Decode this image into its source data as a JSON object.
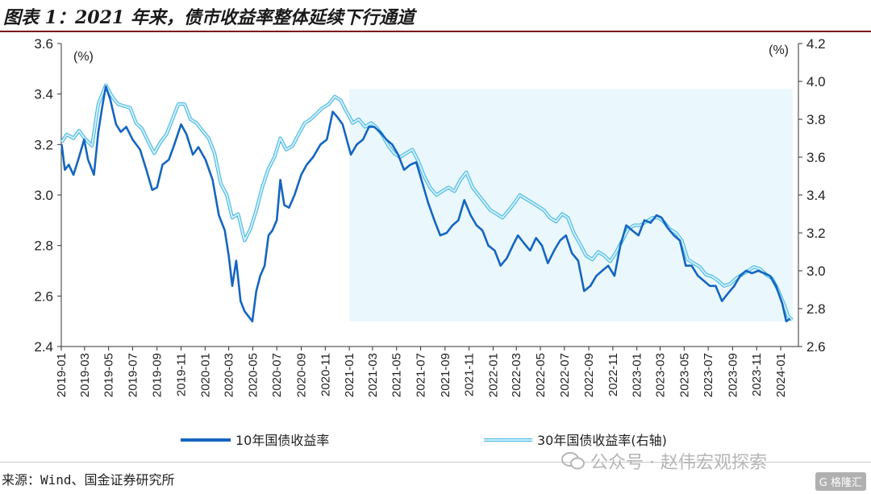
{
  "header": {
    "title": "图表 1：2021 年来，债市收益率整体延续下行通道"
  },
  "footer": {
    "source": "来源：Wind、国金证券研究所"
  },
  "watermark": {
    "text": "公众号 · 赵伟宏观探索",
    "logo": "G 格隆汇"
  },
  "colors": {
    "series1": "#1565c0",
    "series2_fill": "#cfeefa",
    "series2_edge": "#3cb4e0",
    "shade": "#eaf8fd",
    "title_rule": "#7a0e12"
  },
  "chart_data": {
    "type": "line",
    "left_axis": {
      "unit": "(%)",
      "ylim": [
        2.4,
        3.6
      ],
      "ticks": [
        "2.4",
        "2.6",
        "2.8",
        "3.0",
        "3.2",
        "3.4",
        "3.6"
      ]
    },
    "right_axis": {
      "unit": "(%)",
      "ylim": [
        2.6,
        4.2
      ],
      "ticks": [
        "2.6",
        "2.8",
        "3.0",
        "3.2",
        "3.4",
        "3.6",
        "3.8",
        "4.0",
        "4.2"
      ]
    },
    "x_ticks": [
      "2019-01",
      "2019-03",
      "2019-05",
      "2019-07",
      "2019-09",
      "2019-11",
      "2020-01",
      "2020-03",
      "2020-05",
      "2020-07",
      "2020-09",
      "2020-11",
      "2021-01",
      "2021-03",
      "2021-05",
      "2021-07",
      "2021-09",
      "2021-11",
      "2022-01",
      "2022-03",
      "2022-05",
      "2022-07",
      "2022-09",
      "2022-11",
      "2023-01",
      "2023-03",
      "2023-05",
      "2023-07",
      "2023-09",
      "2023-11",
      "2024-01"
    ],
    "shaded_region": {
      "from": "2021-01",
      "to": "2024-02"
    },
    "series": [
      {
        "name": "10年国债收益率",
        "axis": "left",
        "points": [
          [
            "2019-01-02",
            3.2
          ],
          [
            "2019-01-10",
            3.1
          ],
          [
            "2019-01-20",
            3.12
          ],
          [
            "2019-02-01",
            3.08
          ],
          [
            "2019-02-15",
            3.15
          ],
          [
            "2019-02-28",
            3.22
          ],
          [
            "2019-03-10",
            3.14
          ],
          [
            "2019-03-25",
            3.08
          ],
          [
            "2019-04-05",
            3.25
          ],
          [
            "2019-04-15",
            3.35
          ],
          [
            "2019-04-24",
            3.43
          ],
          [
            "2019-05-05",
            3.38
          ],
          [
            "2019-05-20",
            3.28
          ],
          [
            "2019-06-01",
            3.25
          ],
          [
            "2019-06-15",
            3.27
          ],
          [
            "2019-07-01",
            3.22
          ],
          [
            "2019-07-20",
            3.18
          ],
          [
            "2019-08-05",
            3.1
          ],
          [
            "2019-08-20",
            3.02
          ],
          [
            "2019-09-01",
            3.03
          ],
          [
            "2019-09-15",
            3.12
          ],
          [
            "2019-10-01",
            3.14
          ],
          [
            "2019-10-15",
            3.2
          ],
          [
            "2019-11-01",
            3.28
          ],
          [
            "2019-11-15",
            3.24
          ],
          [
            "2019-12-01",
            3.16
          ],
          [
            "2019-12-15",
            3.19
          ],
          [
            "2020-01-02",
            3.14
          ],
          [
            "2020-01-20",
            3.06
          ],
          [
            "2020-02-05",
            2.92
          ],
          [
            "2020-02-20",
            2.86
          ],
          [
            "2020-03-01",
            2.76
          ],
          [
            "2020-03-10",
            2.64
          ],
          [
            "2020-03-20",
            2.74
          ],
          [
            "2020-03-31",
            2.58
          ],
          [
            "2020-04-10",
            2.54
          ],
          [
            "2020-04-20",
            2.52
          ],
          [
            "2020-04-30",
            2.5
          ],
          [
            "2020-05-10",
            2.62
          ],
          [
            "2020-05-20",
            2.68
          ],
          [
            "2020-05-31",
            2.72
          ],
          [
            "2020-06-10",
            2.84
          ],
          [
            "2020-06-20",
            2.86
          ],
          [
            "2020-07-01",
            2.9
          ],
          [
            "2020-07-10",
            3.06
          ],
          [
            "2020-07-20",
            2.96
          ],
          [
            "2020-08-01",
            2.95
          ],
          [
            "2020-08-15",
            3.0
          ],
          [
            "2020-09-01",
            3.08
          ],
          [
            "2020-09-15",
            3.12
          ],
          [
            "2020-10-01",
            3.15
          ],
          [
            "2020-10-20",
            3.2
          ],
          [
            "2020-11-05",
            3.22
          ],
          [
            "2020-11-20",
            3.33
          ],
          [
            "2020-12-01",
            3.31
          ],
          [
            "2020-12-15",
            3.28
          ],
          [
            "2021-01-05",
            3.16
          ],
          [
            "2021-01-20",
            3.2
          ],
          [
            "2021-02-05",
            3.22
          ],
          [
            "2021-02-20",
            3.27
          ],
          [
            "2021-03-05",
            3.27
          ],
          [
            "2021-03-20",
            3.25
          ],
          [
            "2021-04-05",
            3.22
          ],
          [
            "2021-04-20",
            3.2
          ],
          [
            "2021-05-05",
            3.16
          ],
          [
            "2021-05-20",
            3.1
          ],
          [
            "2021-06-05",
            3.12
          ],
          [
            "2021-06-20",
            3.13
          ],
          [
            "2021-07-05",
            3.05
          ],
          [
            "2021-07-20",
            2.97
          ],
          [
            "2021-08-05",
            2.9
          ],
          [
            "2021-08-20",
            2.84
          ],
          [
            "2021-09-05",
            2.85
          ],
          [
            "2021-09-20",
            2.88
          ],
          [
            "2021-10-05",
            2.9
          ],
          [
            "2021-10-20",
            2.98
          ],
          [
            "2021-11-05",
            2.92
          ],
          [
            "2021-11-20",
            2.88
          ],
          [
            "2021-12-05",
            2.86
          ],
          [
            "2021-12-20",
            2.8
          ],
          [
            "2022-01-05",
            2.78
          ],
          [
            "2022-01-20",
            2.72
          ],
          [
            "2022-02-05",
            2.75
          ],
          [
            "2022-02-20",
            2.8
          ],
          [
            "2022-03-05",
            2.84
          ],
          [
            "2022-03-20",
            2.81
          ],
          [
            "2022-04-05",
            2.78
          ],
          [
            "2022-04-20",
            2.83
          ],
          [
            "2022-05-05",
            2.8
          ],
          [
            "2022-05-20",
            2.73
          ],
          [
            "2022-06-05",
            2.78
          ],
          [
            "2022-06-20",
            2.82
          ],
          [
            "2022-07-05",
            2.84
          ],
          [
            "2022-07-20",
            2.77
          ],
          [
            "2022-08-05",
            2.74
          ],
          [
            "2022-08-20",
            2.62
          ],
          [
            "2022-09-05",
            2.64
          ],
          [
            "2022-09-20",
            2.68
          ],
          [
            "2022-10-05",
            2.7
          ],
          [
            "2022-10-20",
            2.72
          ],
          [
            "2022-11-05",
            2.68
          ],
          [
            "2022-11-20",
            2.8
          ],
          [
            "2022-12-05",
            2.88
          ],
          [
            "2022-12-20",
            2.86
          ],
          [
            "2023-01-05",
            2.84
          ],
          [
            "2023-01-20",
            2.9
          ],
          [
            "2023-02-05",
            2.89
          ],
          [
            "2023-02-20",
            2.92
          ],
          [
            "2023-03-05",
            2.91
          ],
          [
            "2023-03-20",
            2.87
          ],
          [
            "2023-04-05",
            2.84
          ],
          [
            "2023-04-20",
            2.82
          ],
          [
            "2023-05-05",
            2.72
          ],
          [
            "2023-05-20",
            2.72
          ],
          [
            "2023-06-05",
            2.68
          ],
          [
            "2023-06-20",
            2.66
          ],
          [
            "2023-07-05",
            2.64
          ],
          [
            "2023-07-20",
            2.64
          ],
          [
            "2023-08-05",
            2.58
          ],
          [
            "2023-08-20",
            2.61
          ],
          [
            "2023-09-05",
            2.64
          ],
          [
            "2023-09-20",
            2.68
          ],
          [
            "2023-10-05",
            2.7
          ],
          [
            "2023-10-20",
            2.69
          ],
          [
            "2023-11-05",
            2.7
          ],
          [
            "2023-11-20",
            2.69
          ],
          [
            "2023-12-05",
            2.68
          ],
          [
            "2023-12-20",
            2.64
          ],
          [
            "2024-01-05",
            2.57
          ],
          [
            "2024-01-15",
            2.5
          ],
          [
            "2024-01-25",
            2.51
          ]
        ]
      },
      {
        "name": "30年国债收益率(右轴)",
        "axis": "right",
        "points": [
          [
            "2019-01-02",
            3.68
          ],
          [
            "2019-01-15",
            3.72
          ],
          [
            "2019-02-01",
            3.7
          ],
          [
            "2019-02-15",
            3.74
          ],
          [
            "2019-03-01",
            3.7
          ],
          [
            "2019-03-20",
            3.66
          ],
          [
            "2019-04-05",
            3.88
          ],
          [
            "2019-04-24",
            3.98
          ],
          [
            "2019-05-10",
            3.92
          ],
          [
            "2019-05-25",
            3.88
          ],
          [
            "2019-06-10",
            3.87
          ],
          [
            "2019-06-25",
            3.86
          ],
          [
            "2019-07-10",
            3.78
          ],
          [
            "2019-07-25",
            3.75
          ],
          [
            "2019-08-10",
            3.68
          ],
          [
            "2019-08-25",
            3.62
          ],
          [
            "2019-09-10",
            3.68
          ],
          [
            "2019-09-25",
            3.72
          ],
          [
            "2019-10-10",
            3.8
          ],
          [
            "2019-10-25",
            3.88
          ],
          [
            "2019-11-10",
            3.88
          ],
          [
            "2019-11-25",
            3.8
          ],
          [
            "2019-12-10",
            3.78
          ],
          [
            "2019-12-25",
            3.74
          ],
          [
            "2020-01-10",
            3.7
          ],
          [
            "2020-01-25",
            3.62
          ],
          [
            "2020-02-10",
            3.46
          ],
          [
            "2020-02-25",
            3.4
          ],
          [
            "2020-03-10",
            3.28
          ],
          [
            "2020-03-25",
            3.3
          ],
          [
            "2020-04-10",
            3.16
          ],
          [
            "2020-04-25",
            3.22
          ],
          [
            "2020-05-10",
            3.32
          ],
          [
            "2020-05-25",
            3.44
          ],
          [
            "2020-06-10",
            3.54
          ],
          [
            "2020-06-25",
            3.6
          ],
          [
            "2020-07-10",
            3.7
          ],
          [
            "2020-07-25",
            3.64
          ],
          [
            "2020-08-10",
            3.66
          ],
          [
            "2020-08-25",
            3.72
          ],
          [
            "2020-09-10",
            3.78
          ],
          [
            "2020-09-25",
            3.8
          ],
          [
            "2020-10-10",
            3.83
          ],
          [
            "2020-10-25",
            3.86
          ],
          [
            "2020-11-10",
            3.88
          ],
          [
            "2020-11-25",
            3.92
          ],
          [
            "2020-12-10",
            3.9
          ],
          [
            "2020-12-25",
            3.84
          ],
          [
            "2021-01-10",
            3.78
          ],
          [
            "2021-01-25",
            3.8
          ],
          [
            "2021-02-10",
            3.76
          ],
          [
            "2021-02-25",
            3.78
          ],
          [
            "2021-03-10",
            3.76
          ],
          [
            "2021-03-25",
            3.72
          ],
          [
            "2021-04-10",
            3.66
          ],
          [
            "2021-04-25",
            3.62
          ],
          [
            "2021-05-10",
            3.6
          ],
          [
            "2021-05-25",
            3.62
          ],
          [
            "2021-06-10",
            3.64
          ],
          [
            "2021-06-25",
            3.58
          ],
          [
            "2021-07-10",
            3.5
          ],
          [
            "2021-07-25",
            3.44
          ],
          [
            "2021-08-10",
            3.4
          ],
          [
            "2021-08-25",
            3.42
          ],
          [
            "2021-09-10",
            3.44
          ],
          [
            "2021-09-25",
            3.42
          ],
          [
            "2021-10-10",
            3.48
          ],
          [
            "2021-10-25",
            3.52
          ],
          [
            "2021-11-10",
            3.44
          ],
          [
            "2021-11-25",
            3.4
          ],
          [
            "2021-12-10",
            3.36
          ],
          [
            "2021-12-25",
            3.32
          ],
          [
            "2022-01-10",
            3.3
          ],
          [
            "2022-01-25",
            3.28
          ],
          [
            "2022-02-10",
            3.32
          ],
          [
            "2022-02-25",
            3.36
          ],
          [
            "2022-03-10",
            3.4
          ],
          [
            "2022-03-25",
            3.38
          ],
          [
            "2022-04-10",
            3.36
          ],
          [
            "2022-04-25",
            3.34
          ],
          [
            "2022-05-10",
            3.32
          ],
          [
            "2022-05-25",
            3.28
          ],
          [
            "2022-06-10",
            3.26
          ],
          [
            "2022-06-25",
            3.3
          ],
          [
            "2022-07-10",
            3.28
          ],
          [
            "2022-07-25",
            3.2
          ],
          [
            "2022-08-10",
            3.14
          ],
          [
            "2022-08-25",
            3.08
          ],
          [
            "2022-09-10",
            3.06
          ],
          [
            "2022-09-25",
            3.1
          ],
          [
            "2022-10-10",
            3.08
          ],
          [
            "2022-10-25",
            3.05
          ],
          [
            "2022-11-10",
            3.1
          ],
          [
            "2022-11-25",
            3.16
          ],
          [
            "2022-12-10",
            3.22
          ],
          [
            "2022-12-25",
            3.24
          ],
          [
            "2023-01-10",
            3.24
          ],
          [
            "2023-01-25",
            3.26
          ],
          [
            "2023-02-10",
            3.28
          ],
          [
            "2023-02-25",
            3.28
          ],
          [
            "2023-03-10",
            3.26
          ],
          [
            "2023-03-25",
            3.22
          ],
          [
            "2023-04-10",
            3.2
          ],
          [
            "2023-04-25",
            3.16
          ],
          [
            "2023-05-10",
            3.06
          ],
          [
            "2023-05-25",
            3.04
          ],
          [
            "2023-06-10",
            3.02
          ],
          [
            "2023-06-25",
            2.98
          ],
          [
            "2023-07-10",
            2.97
          ],
          [
            "2023-07-25",
            2.95
          ],
          [
            "2023-08-10",
            2.92
          ],
          [
            "2023-08-25",
            2.93
          ],
          [
            "2023-09-10",
            2.96
          ],
          [
            "2023-09-25",
            2.98
          ],
          [
            "2023-10-10",
            3.0
          ],
          [
            "2023-10-25",
            3.02
          ],
          [
            "2023-11-10",
            3.01
          ],
          [
            "2023-11-25",
            2.98
          ],
          [
            "2023-12-10",
            2.96
          ],
          [
            "2023-12-25",
            2.9
          ],
          [
            "2024-01-10",
            2.82
          ],
          [
            "2024-01-20",
            2.76
          ],
          [
            "2024-01-30",
            2.74
          ]
        ]
      }
    ]
  }
}
